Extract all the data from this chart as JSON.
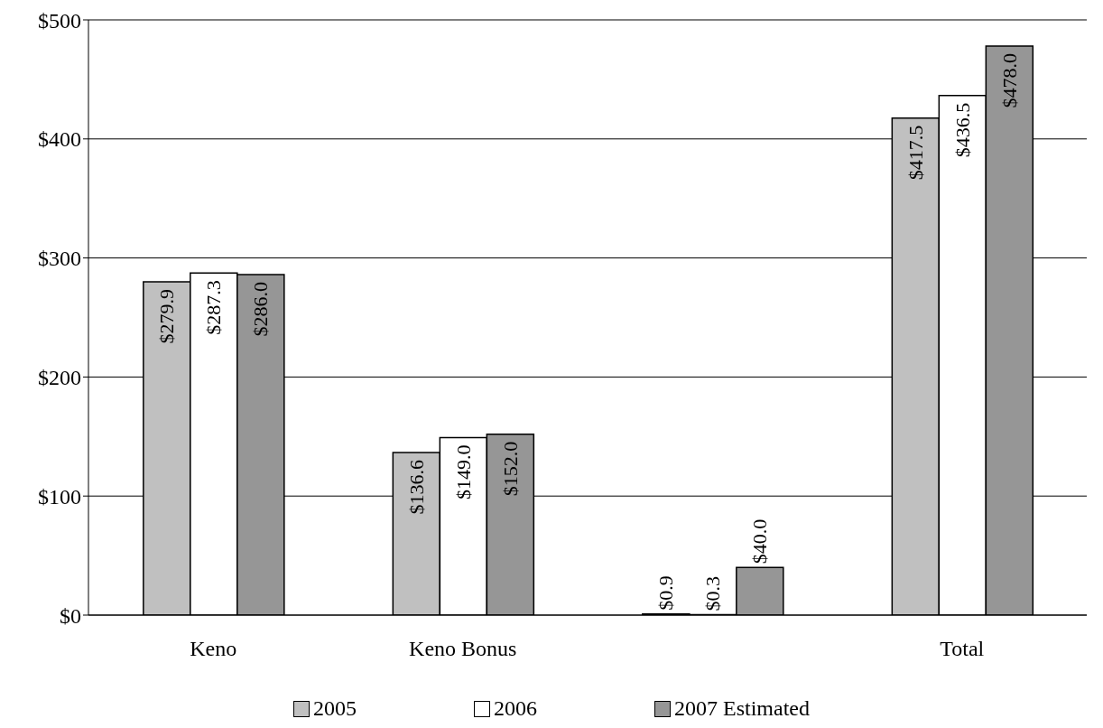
{
  "chart_data": {
    "type": "bar",
    "categories": [
      "Keno",
      "Keno Bonus",
      null,
      "Total"
    ],
    "series": [
      {
        "name": "2005",
        "color": "#c0c0c0",
        "values": [
          279.9,
          136.6,
          0.9,
          417.5
        ],
        "value_labels": [
          "$279.9",
          "$136.6",
          "$0.9",
          "$417.5"
        ]
      },
      {
        "name": "2006",
        "color": "#ffffff",
        "values": [
          287.3,
          149.0,
          0.3,
          436.5
        ],
        "value_labels": [
          "$287.3",
          "$149.0",
          "$0.3",
          "$436.5"
        ]
      },
      {
        "name": "2007 Estimated",
        "color": "#969696",
        "values": [
          286.0,
          152.0,
          40.0,
          478.0
        ],
        "value_labels": [
          "$286.0",
          "$152.0",
          "$40.0",
          "$478.0"
        ]
      }
    ],
    "ylim": [
      0,
      500
    ],
    "yticks": [
      {
        "value": 0,
        "label": "$0"
      },
      {
        "value": 100,
        "label": "$100"
      },
      {
        "value": 200,
        "label": "$200"
      },
      {
        "value": 300,
        "label": "$300"
      },
      {
        "value": 400,
        "label": "$400"
      },
      {
        "value": 500,
        "label": "$500"
      }
    ],
    "grid": "y",
    "legend": "bottom"
  }
}
